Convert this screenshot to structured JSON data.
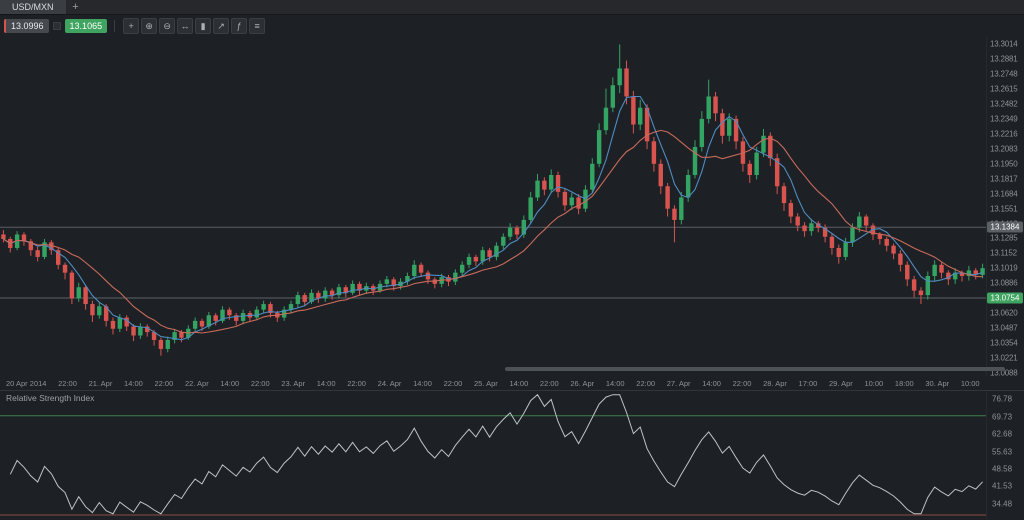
{
  "tab_bar": {
    "tabs": [
      {
        "label": "USD/MXN",
        "active": true
      }
    ],
    "add_tab": "+"
  },
  "toolbar": {
    "sell_price": "13.0996",
    "buy_price": "13.1065",
    "tools": [
      {
        "name": "crosshair-icon",
        "glyph": "+"
      },
      {
        "name": "zoom-in-icon",
        "glyph": "⊕"
      },
      {
        "name": "zoom-out-icon",
        "glyph": "⊖"
      },
      {
        "name": "pan-icon",
        "glyph": "↔"
      },
      {
        "name": "chart-type-icon",
        "glyph": "▮"
      },
      {
        "name": "trend-line-icon",
        "glyph": "↗"
      },
      {
        "name": "indicators-icon",
        "glyph": "ƒ"
      },
      {
        "name": "menu-icon",
        "glyph": "≡"
      }
    ]
  },
  "colors": {
    "candle_up": "#34a463",
    "candle_down": "#d9544f",
    "level_line": "#5c6166",
    "rsi_line": "#bfc3c6",
    "rsi_upper": "#3f7d46",
    "rsi_lower": "#8f4a45"
  },
  "chart_data": [
    {
      "type": "candlestick",
      "symbol": "USD/MXN",
      "ylim": [
        13.005,
        13.308
      ],
      "price_axis_ticks": [
        13.3014,
        13.2881,
        13.2748,
        13.2615,
        13.2482,
        13.2349,
        13.2216,
        13.2083,
        13.195,
        13.1817,
        13.1684,
        13.1551,
        13.1418,
        13.1285,
        13.1152,
        13.1019,
        13.0886,
        13.0753,
        13.062,
        13.0487,
        13.0354,
        13.0221,
        13.0088
      ],
      "price_lines": [
        {
          "value": 13.1384,
          "label": "13.1384",
          "style": "gray"
        },
        {
          "value": 13.0754,
          "label": "13.0754",
          "style": "green"
        }
      ],
      "time_axis": [
        "20 Apr 2014",
        "22:00",
        "21. Apr",
        "14:00",
        "22:00",
        "22. Apr",
        "14:00",
        "22:00",
        "23. Apr",
        "14:00",
        "22:00",
        "24. Apr",
        "14:00",
        "22:00",
        "25. Apr",
        "14:00",
        "22:00",
        "26. Apr",
        "14:00",
        "22:00",
        "27. Apr",
        "14:00",
        "22:00",
        "28. Apr",
        "17:00",
        "29. Apr",
        "10:00",
        "18:00",
        "30. Apr",
        "10:00"
      ],
      "moving_averages": [
        {
          "period": 5,
          "color": "#4e8cc2"
        },
        {
          "period": 12,
          "color": "#c96a5a"
        }
      ],
      "candles": [
        [
          13.132,
          13.136,
          13.125,
          13.128
        ],
        [
          13.128,
          13.13,
          13.116,
          13.12
        ],
        [
          13.12,
          13.135,
          13.118,
          13.132
        ],
        [
          13.132,
          13.134,
          13.122,
          13.126
        ],
        [
          13.126,
          13.128,
          13.113,
          13.118
        ],
        [
          13.118,
          13.121,
          13.108,
          13.112
        ],
        [
          13.112,
          13.128,
          13.11,
          13.125
        ],
        [
          13.125,
          13.127,
          13.114,
          13.118
        ],
        [
          13.118,
          13.12,
          13.101,
          13.105
        ],
        [
          13.105,
          13.107,
          13.092,
          13.098
        ],
        [
          13.098,
          13.1,
          13.07,
          13.075
        ],
        [
          13.075,
          13.089,
          13.072,
          13.085
        ],
        [
          13.085,
          13.087,
          13.065,
          13.07
        ],
        [
          13.07,
          13.073,
          13.054,
          13.06
        ],
        [
          13.06,
          13.072,
          13.057,
          13.068
        ],
        [
          13.068,
          13.07,
          13.05,
          13.055
        ],
        [
          13.055,
          13.058,
          13.043,
          13.048
        ],
        [
          13.048,
          13.061,
          13.045,
          13.058
        ],
        [
          13.058,
          13.06,
          13.046,
          13.05
        ],
        [
          13.05,
          13.052,
          13.037,
          13.042
        ],
        [
          13.042,
          13.053,
          13.039,
          13.05
        ],
        [
          13.05,
          13.052,
          13.041,
          13.045
        ],
        [
          13.045,
          13.047,
          13.033,
          13.038
        ],
        [
          13.038,
          13.04,
          13.024,
          13.03
        ],
        [
          13.03,
          13.041,
          13.027,
          13.038
        ],
        [
          13.038,
          13.048,
          13.035,
          13.045
        ],
        [
          13.045,
          13.047,
          13.036,
          13.04
        ],
        [
          13.04,
          13.051,
          13.038,
          13.048
        ],
        [
          13.048,
          13.058,
          13.045,
          13.055
        ],
        [
          13.055,
          13.057,
          13.046,
          13.05
        ],
        [
          13.05,
          13.063,
          13.048,
          13.06
        ],
        [
          13.06,
          13.062,
          13.051,
          13.055
        ],
        [
          13.055,
          13.068,
          13.053,
          13.065
        ],
        [
          13.065,
          13.067,
          13.056,
          13.06
        ],
        [
          13.06,
          13.062,
          13.051,
          13.055
        ],
        [
          13.055,
          13.065,
          13.052,
          13.062
        ],
        [
          13.062,
          13.064,
          13.054,
          13.058
        ],
        [
          13.058,
          13.068,
          13.056,
          13.065
        ],
        [
          13.065,
          13.073,
          13.062,
          13.07
        ],
        [
          13.07,
          13.072,
          13.058,
          13.062
        ],
        [
          13.062,
          13.064,
          13.054,
          13.058
        ],
        [
          13.058,
          13.068,
          13.055,
          13.065
        ],
        [
          13.065,
          13.073,
          13.062,
          13.07
        ],
        [
          13.07,
          13.081,
          13.067,
          13.078
        ],
        [
          13.078,
          13.08,
          13.068,
          13.072
        ],
        [
          13.072,
          13.083,
          13.07,
          13.08
        ],
        [
          13.08,
          13.082,
          13.071,
          13.075
        ],
        [
          13.075,
          13.085,
          13.072,
          13.082
        ],
        [
          13.082,
          13.084,
          13.074,
          13.078
        ],
        [
          13.078,
          13.088,
          13.075,
          13.085
        ],
        [
          13.085,
          13.087,
          13.076,
          13.08
        ],
        [
          13.08,
          13.091,
          13.078,
          13.088
        ],
        [
          13.088,
          13.09,
          13.078,
          13.082
        ],
        [
          13.082,
          13.089,
          13.079,
          13.086
        ],
        [
          13.086,
          13.088,
          13.078,
          13.082
        ],
        [
          13.082,
          13.091,
          13.08,
          13.088
        ],
        [
          13.088,
          13.095,
          13.085,
          13.092
        ],
        [
          13.092,
          13.094,
          13.082,
          13.086
        ],
        [
          13.086,
          13.093,
          13.083,
          13.09
        ],
        [
          13.09,
          13.098,
          13.087,
          13.095
        ],
        [
          13.095,
          13.109,
          13.092,
          13.105
        ],
        [
          13.105,
          13.107,
          13.094,
          13.098
        ],
        [
          13.098,
          13.1,
          13.088,
          13.092
        ],
        [
          13.092,
          13.094,
          13.084,
          13.088
        ],
        [
          13.088,
          13.097,
          13.085,
          13.094
        ],
        [
          13.094,
          13.096,
          13.086,
          13.09
        ],
        [
          13.09,
          13.101,
          13.087,
          13.098
        ],
        [
          13.098,
          13.108,
          13.095,
          13.105
        ],
        [
          13.105,
          13.115,
          13.102,
          13.112
        ],
        [
          13.112,
          13.114,
          13.104,
          13.108
        ],
        [
          13.108,
          13.121,
          13.105,
          13.118
        ],
        [
          13.118,
          13.12,
          13.108,
          13.112
        ],
        [
          13.112,
          13.125,
          13.109,
          13.122
        ],
        [
          13.122,
          13.133,
          13.119,
          13.13
        ],
        [
          13.13,
          13.142,
          13.127,
          13.138
        ],
        [
          13.138,
          13.14,
          13.128,
          13.132
        ],
        [
          13.132,
          13.149,
          13.129,
          13.145
        ],
        [
          13.145,
          13.17,
          13.142,
          13.165
        ],
        [
          13.165,
          13.186,
          13.162,
          13.18
        ],
        [
          13.18,
          13.183,
          13.167,
          13.172
        ],
        [
          13.172,
          13.19,
          13.169,
          13.185
        ],
        [
          13.185,
          13.188,
          13.165,
          13.17
        ],
        [
          13.17,
          13.173,
          13.153,
          13.158
        ],
        [
          13.158,
          13.169,
          13.154,
          13.165
        ],
        [
          13.165,
          13.168,
          13.15,
          13.155
        ],
        [
          13.155,
          13.176,
          13.152,
          13.172
        ],
        [
          13.172,
          13.2,
          13.169,
          13.195
        ],
        [
          13.195,
          13.231,
          13.192,
          13.225
        ],
        [
          13.225,
          13.262,
          13.221,
          13.245
        ],
        [
          13.245,
          13.272,
          13.241,
          13.265
        ],
        [
          13.265,
          13.3014,
          13.258,
          13.28
        ],
        [
          13.28,
          13.287,
          13.248,
          13.255
        ],
        [
          13.255,
          13.26,
          13.222,
          13.23
        ],
        [
          13.23,
          13.252,
          13.225,
          13.245
        ],
        [
          13.245,
          13.248,
          13.208,
          13.215
        ],
        [
          13.215,
          13.219,
          13.188,
          13.195
        ],
        [
          13.195,
          13.199,
          13.168,
          13.175
        ],
        [
          13.175,
          13.178,
          13.148,
          13.155
        ],
        [
          13.155,
          13.158,
          13.125,
          13.145
        ],
        [
          13.145,
          13.17,
          13.141,
          13.165
        ],
        [
          13.165,
          13.19,
          13.161,
          13.185
        ],
        [
          13.185,
          13.216,
          13.182,
          13.21
        ],
        [
          13.21,
          13.242,
          13.206,
          13.235
        ],
        [
          13.235,
          13.27,
          13.231,
          13.255
        ],
        [
          13.255,
          13.259,
          13.233,
          13.24
        ],
        [
          13.24,
          13.244,
          13.213,
          13.22
        ],
        [
          13.22,
          13.24,
          13.215,
          13.235
        ],
        [
          13.235,
          13.238,
          13.208,
          13.215
        ],
        [
          13.215,
          13.219,
          13.188,
          13.195
        ],
        [
          13.195,
          13.198,
          13.178,
          13.185
        ],
        [
          13.185,
          13.21,
          13.181,
          13.205
        ],
        [
          13.205,
          13.226,
          13.201,
          13.22
        ],
        [
          13.22,
          13.223,
          13.193,
          13.2
        ],
        [
          13.2,
          13.204,
          13.168,
          13.175
        ],
        [
          13.175,
          13.178,
          13.153,
          13.16
        ],
        [
          13.16,
          13.163,
          13.142,
          13.148
        ],
        [
          13.148,
          13.151,
          13.135,
          13.14
        ],
        [
          13.14,
          13.143,
          13.13,
          13.135
        ],
        [
          13.135,
          13.146,
          13.131,
          13.142
        ],
        [
          13.142,
          13.144,
          13.134,
          13.138
        ],
        [
          13.138,
          13.141,
          13.125,
          13.13
        ],
        [
          13.13,
          13.133,
          13.114,
          13.12
        ],
        [
          13.12,
          13.123,
          13.106,
          13.112
        ],
        [
          13.112,
          13.129,
          13.109,
          13.125
        ],
        [
          13.125,
          13.142,
          13.121,
          13.138
        ],
        [
          13.138,
          13.152,
          13.134,
          13.148
        ],
        [
          13.148,
          13.15,
          13.135,
          13.14
        ],
        [
          13.14,
          13.142,
          13.127,
          13.132
        ],
        [
          13.132,
          13.134,
          13.123,
          13.128
        ],
        [
          13.128,
          13.13,
          13.117,
          13.122
        ],
        [
          13.122,
          13.124,
          13.11,
          13.115
        ],
        [
          13.115,
          13.118,
          13.099,
          13.105
        ],
        [
          13.105,
          13.108,
          13.086,
          13.092
        ],
        [
          13.092,
          13.095,
          13.076,
          13.082
        ],
        [
          13.082,
          13.085,
          13.07,
          13.078
        ],
        [
          13.078,
          13.099,
          13.074,
          13.095
        ],
        [
          13.095,
          13.109,
          13.091,
          13.105
        ],
        [
          13.105,
          13.107,
          13.093,
          13.098
        ],
        [
          13.098,
          13.1,
          13.087,
          13.092
        ],
        [
          13.092,
          13.102,
          13.088,
          13.098
        ],
        [
          13.098,
          13.1,
          13.09,
          13.095
        ],
        [
          13.095,
          13.104,
          13.091,
          13.1
        ],
        [
          13.1,
          13.102,
          13.092,
          13.096
        ],
        [
          13.096,
          13.106,
          13.093,
          13.102
        ]
      ]
    },
    {
      "type": "line",
      "title": "Relative Strength Index",
      "derived_from": "closes",
      "period": 14,
      "ylim": [
        28,
        80
      ],
      "clamp": [
        30.5,
        78.5
      ],
      "levels": [
        {
          "value": 70,
          "color_key": "rsi_upper"
        },
        {
          "value": 30,
          "color_key": "rsi_lower"
        }
      ],
      "axis_ticks": [
        76.78,
        69.73,
        62.68,
        55.63,
        48.58,
        41.53,
        34.48
      ]
    }
  ]
}
